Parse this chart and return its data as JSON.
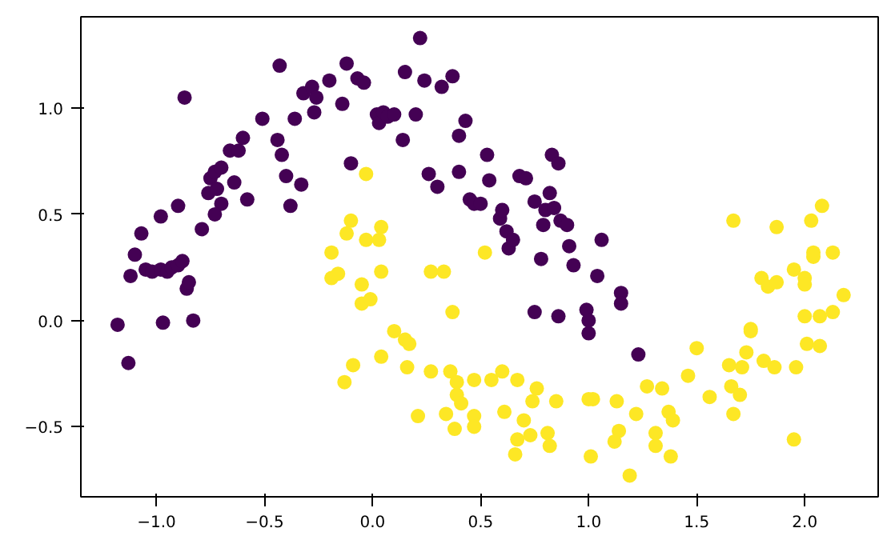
{
  "chart_data": {
    "type": "scatter",
    "marker": "circle",
    "grid": false,
    "xlim": [
      -1.35,
      2.34
    ],
    "ylim": [
      -0.83,
      1.43
    ],
    "xticks": [
      {
        "value": -1.0,
        "label": "−1.0"
      },
      {
        "value": -0.5,
        "label": "−0.5"
      },
      {
        "value": 0.0,
        "label": "0.0"
      },
      0.5,
      {
        "value": 1.0,
        "label": "1.0"
      },
      1.5,
      {
        "value": 2.0,
        "label": "2.0"
      }
    ],
    "yticks": [
      {
        "value": -0.5,
        "label": "−0.5"
      },
      {
        "value": 0.0,
        "label": "0.0"
      },
      0.5,
      {
        "value": 1.0,
        "label": "1.0"
      }
    ],
    "series": [
      {
        "color": "#440154",
        "x": [
          -1.18,
          -1.13,
          -1.12,
          -1.1,
          -1.07,
          -1.05,
          -1.02,
          -0.98,
          -0.97,
          -0.98,
          -0.95,
          -0.93,
          -0.9,
          -0.9,
          -0.88,
          -0.86,
          -0.85,
          -0.87,
          -0.83,
          -0.79,
          -0.76,
          -0.75,
          -0.73,
          -0.72,
          -0.7,
          -0.73,
          -0.7,
          -0.66,
          -0.64,
          -0.62,
          -0.6,
          -0.58,
          -0.51,
          -0.44,
          -0.43,
          -0.42,
          -0.4,
          -0.38,
          -0.36,
          -0.33,
          -0.32,
          -0.28,
          -0.27,
          -0.26,
          -0.2,
          -0.14,
          -0.12,
          -0.1,
          -0.07,
          -0.04,
          0.02,
          0.03,
          0.05,
          0.07,
          0.1,
          0.14,
          0.15,
          0.2,
          0.22,
          0.24,
          0.26,
          0.3,
          0.32,
          0.37,
          0.4,
          0.4,
          0.43,
          0.45,
          0.47,
          0.5,
          0.53,
          0.54,
          0.59,
          0.6,
          0.62,
          0.63,
          0.65,
          0.68,
          0.71,
          0.75,
          0.78,
          0.79,
          0.82,
          0.8,
          0.84,
          0.83,
          0.86,
          0.87,
          0.9,
          0.91,
          0.93,
          0.75,
          0.86,
          0.99,
          1.0,
          1.0,
          1.04,
          1.06,
          1.15,
          1.15,
          1.23
        ],
        "values": [
          -0.02,
          -0.2,
          0.21,
          0.31,
          0.41,
          0.24,
          0.23,
          0.24,
          -0.01,
          0.49,
          0.23,
          0.25,
          0.54,
          0.26,
          0.28,
          0.15,
          0.18,
          1.05,
          0.0,
          0.43,
          0.6,
          0.67,
          0.7,
          0.62,
          0.55,
          0.5,
          0.72,
          0.8,
          0.65,
          0.8,
          0.86,
          0.57,
          0.95,
          0.85,
          1.2,
          0.78,
          0.68,
          0.54,
          0.95,
          0.64,
          1.07,
          1.1,
          0.98,
          1.05,
          1.13,
          1.02,
          1.21,
          0.74,
          1.14,
          1.12,
          0.97,
          0.93,
          0.98,
          0.96,
          0.97,
          0.85,
          1.17,
          0.97,
          1.33,
          1.13,
          0.69,
          0.63,
          1.1,
          1.15,
          0.87,
          0.7,
          0.94,
          0.57,
          0.55,
          0.55,
          0.78,
          0.66,
          0.48,
          0.52,
          0.42,
          0.34,
          0.38,
          0.68,
          0.67,
          0.56,
          0.29,
          0.45,
          0.6,
          0.52,
          0.53,
          0.78,
          0.74,
          0.47,
          0.45,
          0.35,
          0.26,
          0.04,
          0.02,
          0.05,
          0.0,
          -0.06,
          0.21,
          0.38,
          0.13,
          0.08,
          -0.16
        ]
      },
      {
        "color": "#fde725",
        "x": [
          -0.19,
          -0.19,
          -0.16,
          -0.05,
          -0.05,
          -0.09,
          -0.13,
          -0.1,
          -0.12,
          -0.03,
          -0.03,
          0.03,
          0.04,
          0.52,
          0.04,
          0.27,
          0.33,
          -0.01,
          0.37,
          0.1,
          0.15,
          0.17,
          0.04,
          0.16,
          0.27,
          0.36,
          0.39,
          0.47,
          0.39,
          0.41,
          0.21,
          0.34,
          0.38,
          0.47,
          0.47,
          0.55,
          0.6,
          0.67,
          0.61,
          0.76,
          0.74,
          0.85,
          0.7,
          0.73,
          0.67,
          0.66,
          0.81,
          0.82,
          1.0,
          1.02,
          1.01,
          1.13,
          1.14,
          1.12,
          1.19,
          1.22,
          1.27,
          1.34,
          1.31,
          1.31,
          1.37,
          1.39,
          1.38,
          1.46,
          1.5,
          1.56,
          1.65,
          1.71,
          1.66,
          1.7,
          1.67,
          1.73,
          1.75,
          1.75,
          1.81,
          1.86,
          1.8,
          1.83,
          1.87,
          1.95,
          2.0,
          2.0,
          2.04,
          2.04,
          2.13,
          2.18,
          2.0,
          2.07,
          2.13,
          2.01,
          2.07,
          1.96,
          1.95,
          1.67,
          1.87,
          2.03,
          2.08
        ],
        "values": [
          0.32,
          0.2,
          0.22,
          0.17,
          0.08,
          -0.21,
          -0.29,
          0.47,
          0.41,
          0.69,
          0.38,
          0.38,
          0.44,
          0.32,
          0.23,
          0.23,
          0.23,
          0.1,
          0.04,
          -0.05,
          -0.09,
          -0.11,
          -0.17,
          -0.22,
          -0.24,
          -0.24,
          -0.29,
          -0.28,
          -0.35,
          -0.39,
          -0.45,
          -0.44,
          -0.51,
          -0.45,
          -0.5,
          -0.28,
          -0.24,
          -0.28,
          -0.43,
          -0.32,
          -0.38,
          -0.38,
          -0.47,
          -0.54,
          -0.56,
          -0.63,
          -0.53,
          -0.59,
          -0.37,
          -0.37,
          -0.64,
          -0.38,
          -0.52,
          -0.57,
          -0.73,
          -0.44,
          -0.31,
          -0.32,
          -0.53,
          -0.59,
          -0.43,
          -0.47,
          -0.64,
          -0.26,
          -0.13,
          -0.36,
          -0.21,
          -0.22,
          -0.31,
          -0.35,
          -0.44,
          -0.15,
          -0.04,
          -0.05,
          -0.19,
          -0.22,
          0.2,
          0.16,
          0.18,
          0.24,
          0.2,
          0.17,
          0.32,
          0.3,
          0.32,
          0.12,
          0.02,
          0.02,
          0.04,
          -0.11,
          -0.12,
          -0.22,
          -0.56,
          0.47,
          0.44,
          0.47,
          0.54
        ]
      }
    ]
  }
}
